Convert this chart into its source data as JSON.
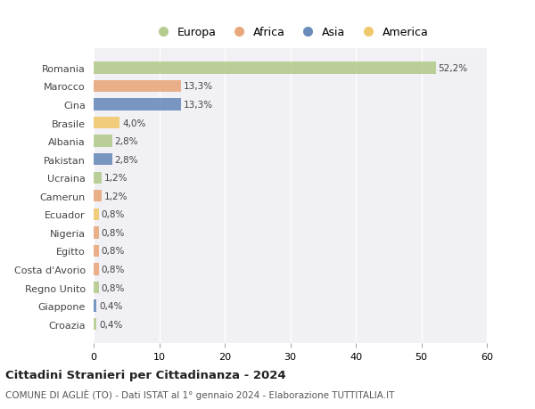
{
  "countries": [
    "Romania",
    "Marocco",
    "Cina",
    "Brasile",
    "Albania",
    "Pakistan",
    "Ucraina",
    "Camerun",
    "Ecuador",
    "Nigeria",
    "Egitto",
    "Costa d'Avorio",
    "Regno Unito",
    "Giappone",
    "Croazia"
  ],
  "values": [
    52.2,
    13.3,
    13.3,
    4.0,
    2.8,
    2.8,
    1.2,
    1.2,
    0.8,
    0.8,
    0.8,
    0.8,
    0.8,
    0.4,
    0.4
  ],
  "labels": [
    "52,2%",
    "13,3%",
    "13,3%",
    "4,0%",
    "2,8%",
    "2,8%",
    "1,2%",
    "1,2%",
    "0,8%",
    "0,8%",
    "0,8%",
    "0,8%",
    "0,8%",
    "0,4%",
    "0,4%"
  ],
  "colors": [
    "#b5cc8e",
    "#e8a87c",
    "#6b8cba",
    "#f0c96e",
    "#b5cc8e",
    "#6b8cba",
    "#b5cc8e",
    "#e8a87c",
    "#f0c96e",
    "#e8a87c",
    "#e8a87c",
    "#e8a87c",
    "#b5cc8e",
    "#6b8cba",
    "#b5cc8e"
  ],
  "continent_colors": {
    "Europa": "#b5cc8e",
    "Africa": "#e8a87c",
    "Asia": "#6b8cba",
    "America": "#f0c96e"
  },
  "title": "Cittadini Stranieri per Cittadinanza - 2024",
  "subtitle": "COMUNE DI AGLIÈ (TO) - Dati ISTAT al 1° gennaio 2024 - Elaborazione TUTTITALIA.IT",
  "xlim": [
    0,
    60
  ],
  "xticks": [
    0,
    10,
    20,
    30,
    40,
    50,
    60
  ],
  "background_color": "#ffffff",
  "plot_bg_color": "#f0f0f5",
  "grid_color": "#ffffff"
}
